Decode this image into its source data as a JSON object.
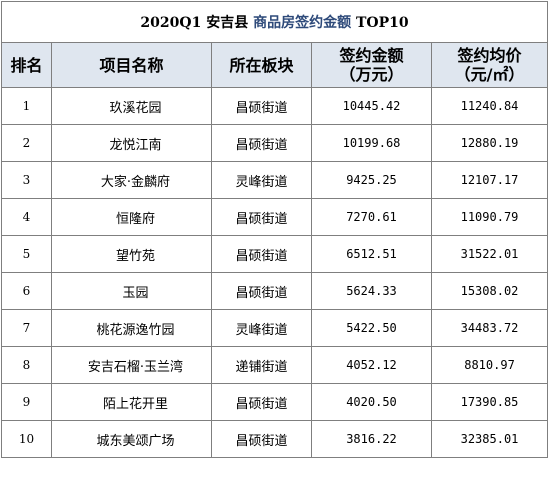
{
  "title_parts": {
    "prefix": "2020Q1 安吉县",
    "accent": "商品房签约金额",
    "suffix": " TOP10"
  },
  "headers": {
    "rank": "排名",
    "project": "项目名称",
    "area": "所在板块",
    "amount_line1": "签约金额",
    "amount_line2": "（万元）",
    "price_line1": "签约均价",
    "price_line2": "（元/㎡）"
  },
  "rows": [
    {
      "rank": "1",
      "project": "玖溪花园",
      "area": "昌硕街道",
      "amount": "10445.42",
      "price": "11240.84"
    },
    {
      "rank": "2",
      "project": "龙悦江南",
      "area": "昌硕街道",
      "amount": "10199.68",
      "price": "12880.19"
    },
    {
      "rank": "3",
      "project": "大家·金麟府",
      "area": "灵峰街道",
      "amount": "9425.25",
      "price": "12107.17"
    },
    {
      "rank": "4",
      "project": "恒隆府",
      "area": "昌硕街道",
      "amount": "7270.61",
      "price": "11090.79"
    },
    {
      "rank": "5",
      "project": "望竹苑",
      "area": "昌硕街道",
      "amount": "6512.51",
      "price": "31522.01"
    },
    {
      "rank": "6",
      "project": "玉园",
      "area": "昌硕街道",
      "amount": "5624.33",
      "price": "15308.02"
    },
    {
      "rank": "7",
      "project": "桃花源逸竹园",
      "area": "灵峰街道",
      "amount": "5422.50",
      "price": "34483.72"
    },
    {
      "rank": "8",
      "project": "安吉石榴·玉兰湾",
      "area": "递铺街道",
      "amount": "4052.12",
      "price": "8810.97"
    },
    {
      "rank": "9",
      "project": "陌上花开里",
      "area": "昌硕街道",
      "amount": "4020.50",
      "price": "17390.85"
    },
    {
      "rank": "10",
      "project": "城东美颂广场",
      "area": "昌硕街道",
      "amount": "3816.22",
      "price": "32385.01"
    }
  ]
}
